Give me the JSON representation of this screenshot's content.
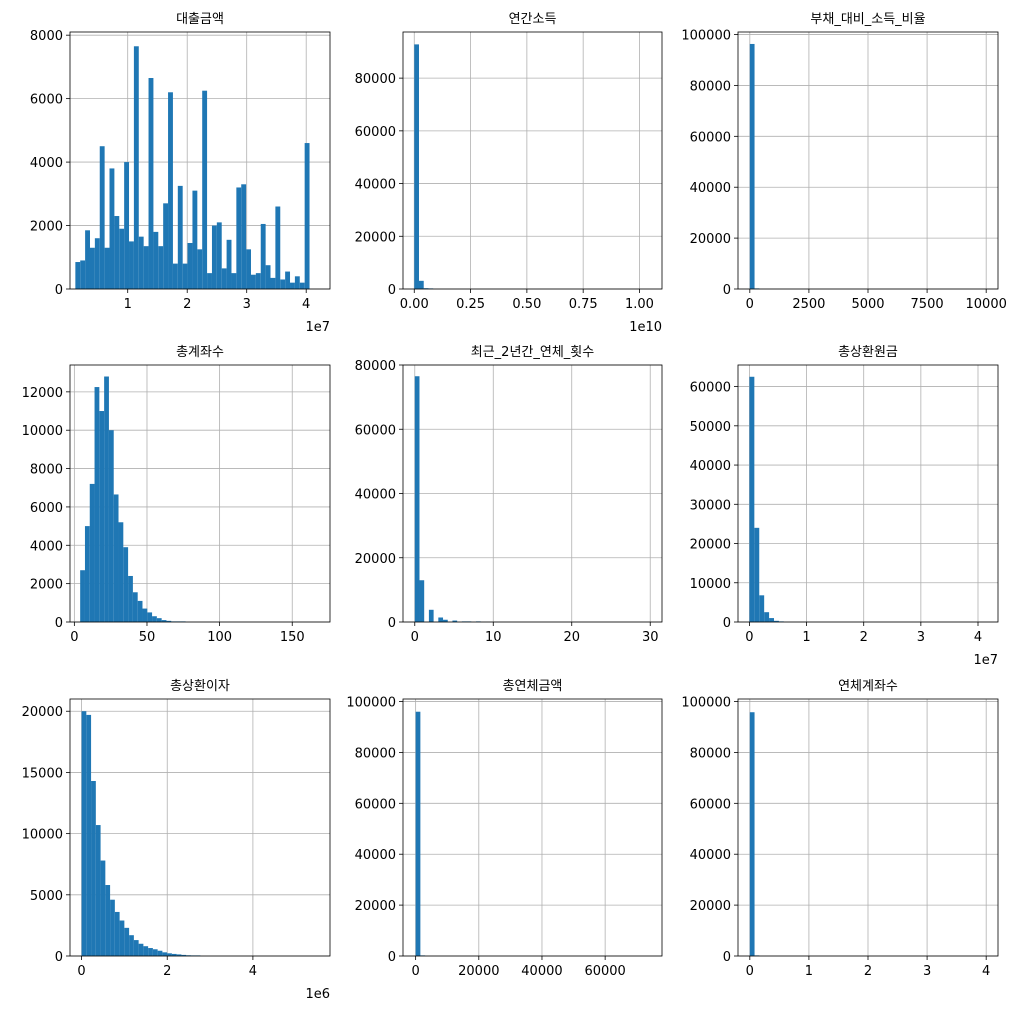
{
  "chart_data": [
    {
      "type": "bar",
      "title": "대출금액",
      "bar_color": "#1f77b4",
      "grid": true,
      "xlim": [
        300000,
        44000000
      ],
      "ylim": [
        0,
        8100
      ],
      "xticks": [
        10000000,
        20000000,
        30000000,
        40000000
      ],
      "xtick_labels": [
        "1",
        "2",
        "3",
        "4"
      ],
      "yticks": [
        0,
        2000,
        4000,
        6000,
        8000
      ],
      "ytick_labels": [
        "0",
        "2000",
        "4000",
        "6000",
        "8000"
      ],
      "x_offset_label": "1e7",
      "bin_start": 1200000,
      "bin_width": 820000,
      "values": [
        850,
        900,
        1850,
        1300,
        1600,
        4500,
        1300,
        3800,
        2300,
        1900,
        4000,
        1500,
        7650,
        1650,
        1350,
        6650,
        1800,
        1350,
        2700,
        6200,
        800,
        3250,
        800,
        1450,
        3100,
        1250,
        6250,
        500,
        2000,
        2100,
        650,
        1550,
        500,
        3200,
        3300,
        1250,
        450,
        500,
        2050,
        750,
        350,
        2600,
        300,
        550,
        200,
        400,
        200,
        4600
      ]
    },
    {
      "type": "bar",
      "title": "연간소득",
      "bar_color": "#1f77b4",
      "grid": true,
      "xlim": [
        -500000000,
        11000000000
      ],
      "ylim": [
        0,
        97500
      ],
      "xticks": [
        0,
        2500000000,
        5000000000,
        7500000000,
        10000000000
      ],
      "xtick_labels": [
        "0.00",
        "0.25",
        "0.50",
        "0.75",
        "1.00"
      ],
      "yticks": [
        0,
        20000,
        40000,
        60000,
        80000
      ],
      "ytick_labels": [
        "0",
        "20000",
        "40000",
        "60000",
        "80000"
      ],
      "x_offset_label": "1e10",
      "bin_start": 0,
      "bin_width": 210000000,
      "values": [
        92800,
        3100,
        300,
        80
      ]
    },
    {
      "type": "bar",
      "title": "부채_대비_소득_비율",
      "bar_color": "#1f77b4",
      "grid": true,
      "xlim": [
        -500,
        10500
      ],
      "ylim": [
        0,
        101000
      ],
      "xticks": [
        0,
        2500,
        5000,
        7500,
        10000
      ],
      "xtick_labels": [
        "0",
        "2500",
        "5000",
        "7500",
        "10000"
      ],
      "yticks": [
        0,
        20000,
        40000,
        60000,
        80000,
        100000
      ],
      "ytick_labels": [
        "0",
        "20000",
        "40000",
        "60000",
        "80000",
        "100000"
      ],
      "x_offset_label": "",
      "bin_start": 0,
      "bin_width": 200,
      "values": [
        96300,
        50
      ]
    },
    {
      "type": "bar",
      "title": "총계좌수",
      "bar_color": "#1f77b4",
      "grid": true,
      "xlim": [
        -3,
        176
      ],
      "ylim": [
        0,
        13400
      ],
      "xticks": [
        0,
        50,
        100,
        150
      ],
      "xtick_labels": [
        "0",
        "50",
        "100",
        "150"
      ],
      "yticks": [
        0,
        2000,
        4000,
        6000,
        8000,
        10000,
        12000
      ],
      "ytick_labels": [
        "0",
        "2000",
        "4000",
        "6000",
        "8000",
        "10000",
        "12000"
      ],
      "x_offset_label": "",
      "bin_start": 4,
      "bin_width": 3.3,
      "values": [
        2700,
        5000,
        7200,
        12250,
        11000,
        12800,
        10000,
        6650,
        5200,
        3900,
        2400,
        1550,
        1100,
        700,
        500,
        300,
        200,
        100,
        60,
        30,
        15,
        10
      ]
    },
    {
      "type": "bar",
      "title": "최근_2년간_연체_횟수",
      "bar_color": "#1f77b4",
      "grid": true,
      "xlim": [
        -1.5,
        31.5
      ],
      "ylim": [
        0,
        80000
      ],
      "xticks": [
        0,
        10,
        20,
        30
      ],
      "xtick_labels": [
        "0",
        "10",
        "20",
        "30"
      ],
      "yticks": [
        0,
        20000,
        40000,
        60000,
        80000
      ],
      "ytick_labels": [
        "0",
        "20000",
        "40000",
        "60000",
        "80000"
      ],
      "x_offset_label": "",
      "bin_start": 0,
      "bin_width": 0.6,
      "values": [
        76500,
        13000,
        0,
        3800,
        0,
        1400,
        700,
        0,
        450,
        0,
        150,
        60,
        0,
        30
      ]
    },
    {
      "type": "bar",
      "title": "총상환원금",
      "bar_color": "#1f77b4",
      "grid": true,
      "xlim": [
        -2000000,
        43500000
      ],
      "ylim": [
        0,
        65500
      ],
      "xticks": [
        0,
        10000000,
        20000000,
        30000000,
        40000000
      ],
      "xtick_labels": [
        "0",
        "1",
        "2",
        "3",
        "4"
      ],
      "yticks": [
        0,
        10000,
        20000,
        30000,
        40000,
        50000,
        60000
      ],
      "ytick_labels": [
        "0",
        "10000",
        "20000",
        "30000",
        "40000",
        "50000",
        "60000"
      ],
      "x_offset_label": "1e7",
      "bin_start": 0,
      "bin_width": 860000,
      "values": [
        62500,
        24000,
        6800,
        2500,
        1000,
        300,
        100
      ]
    },
    {
      "type": "bar",
      "title": "총상환이자",
      "bar_color": "#1f77b4",
      "grid": true,
      "xlim": [
        -270000,
        5800000
      ],
      "ylim": [
        0,
        21000
      ],
      "xticks": [
        0,
        2000000,
        4000000
      ],
      "xtick_labels": [
        "0",
        "2",
        "4"
      ],
      "yticks": [
        0,
        5000,
        10000,
        15000,
        20000
      ],
      "ytick_labels": [
        "0",
        "5000",
        "10000",
        "15000",
        "20000"
      ],
      "x_offset_label": "1e6",
      "bin_start": 0,
      "bin_width": 111000,
      "values": [
        20000,
        19700,
        14300,
        10700,
        7800,
        5800,
        4600,
        3600,
        2900,
        2300,
        1700,
        1300,
        1000,
        800,
        650,
        550,
        430,
        300,
        220,
        170,
        130,
        90,
        60,
        40,
        20
      ]
    },
    {
      "type": "bar",
      "title": "총연체금액",
      "bar_color": "#1f77b4",
      "grid": true,
      "xlim": [
        -4000,
        78000
      ],
      "ylim": [
        0,
        101000
      ],
      "xticks": [
        0,
        20000,
        40000,
        60000
      ],
      "xtick_labels": [
        "0",
        "20000",
        "40000",
        "60000"
      ],
      "yticks": [
        0,
        20000,
        40000,
        60000,
        80000,
        100000
      ],
      "ytick_labels": [
        "0",
        "20000",
        "40000",
        "60000",
        "80000",
        "100000"
      ],
      "x_offset_label": "",
      "bin_start": 0,
      "bin_width": 1500,
      "values": [
        96000,
        50
      ]
    },
    {
      "type": "bar",
      "title": "연체계좌수",
      "bar_color": "#1f77b4",
      "grid": true,
      "xlim": [
        -0.2,
        4.2
      ],
      "ylim": [
        0,
        101000
      ],
      "xticks": [
        0,
        1,
        2,
        3,
        4
      ],
      "xtick_labels": [
        "0",
        "1",
        "2",
        "3",
        "4"
      ],
      "yticks": [
        0,
        20000,
        40000,
        60000,
        80000,
        100000
      ],
      "ytick_labels": [
        "0",
        "20000",
        "40000",
        "60000",
        "80000",
        "100000"
      ],
      "x_offset_label": "",
      "bin_start": 0,
      "bin_width": 0.08,
      "values": [
        95800,
        200
      ]
    }
  ]
}
